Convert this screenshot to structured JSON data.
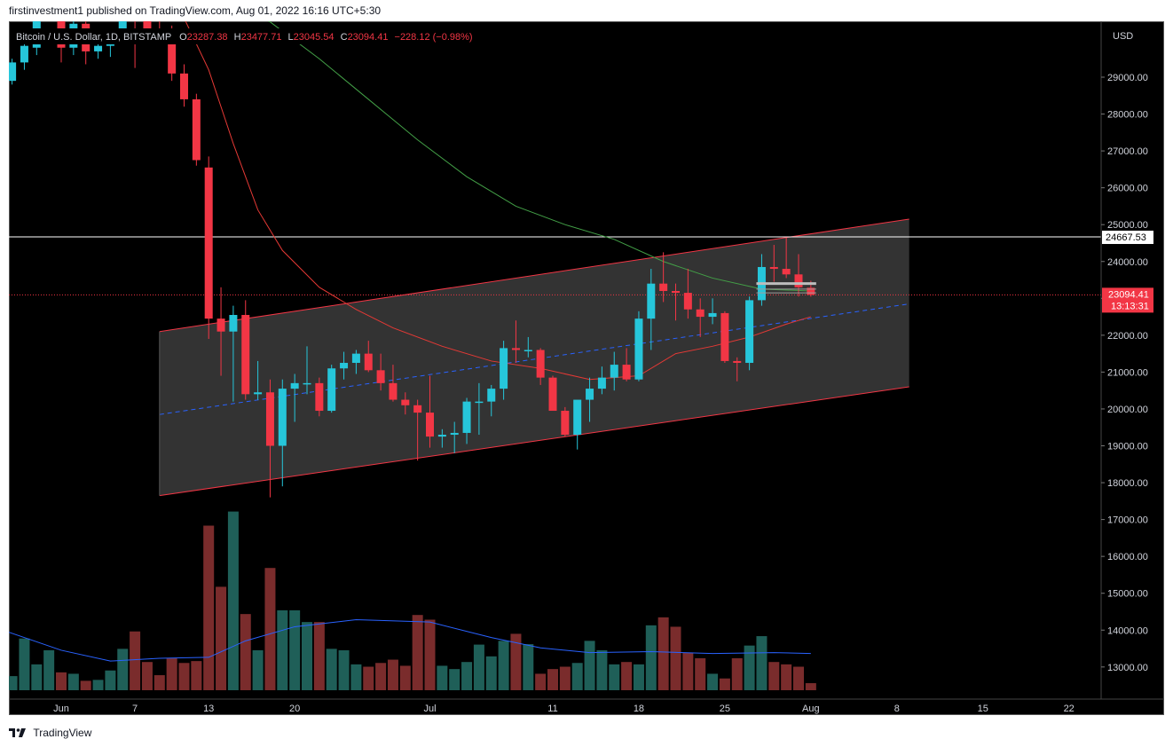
{
  "header": {
    "publish_line": "firstinvestment1 published on TradingView.com, Aug 01, 2022 16:16 UTC+5:30"
  },
  "footer": {
    "brand": "TradingView"
  },
  "symbol": {
    "name": "Bitcoin / U.S. Dollar, 1D, BITSTAMP",
    "o_label": "O",
    "o_value": "23287.38",
    "h_label": "H",
    "h_value": "23477.71",
    "l_label": "L",
    "l_value": "23045.54",
    "c_label": "C",
    "c_value": "23094.41",
    "change": "−228.12 (−0.98%)"
  },
  "colors": {
    "background": "#000000",
    "up": "#26c6da",
    "down": "#f23645",
    "vol_up": "#1f5f58",
    "vol_down": "#7a2c2c",
    "ma_fast": "#e53935",
    "ma_slow": "#43a047",
    "vol_ma": "#2962ff",
    "channel_border": "#f23645",
    "channel_mid": "#2962ff",
    "hline": "#ffffff",
    "price_line": "#f23645"
  },
  "chart_data": {
    "type": "candlestick",
    "currency_label": "USD",
    "y_ticks": [
      29000,
      28000,
      27000,
      26000,
      25000,
      24000,
      23000,
      22000,
      21000,
      20000,
      19000,
      18000,
      17000,
      16000,
      15000,
      14000,
      13000
    ],
    "y_tick_labels": [
      "29000.00",
      "28000.00",
      "27000.00",
      "26000.00",
      "25000.00",
      "24000.00",
      "23000.00",
      "22000.00",
      "21000.00",
      "20000.00",
      "19000.00",
      "18000.00",
      "17000.00",
      "16000.00",
      "15000.00",
      "14000.00",
      "13000.00"
    ],
    "x_labels": [
      {
        "date": "2022-06-01",
        "label": "Jun"
      },
      {
        "date": "2022-06-07",
        "label": "7"
      },
      {
        "date": "2022-06-13",
        "label": "13"
      },
      {
        "date": "2022-06-20",
        "label": "20"
      },
      {
        "date": "2022-07-01",
        "label": "Jul"
      },
      {
        "date": "2022-07-11",
        "label": "11"
      },
      {
        "date": "2022-07-18",
        "label": "18"
      },
      {
        "date": "2022-07-25",
        "label": "25"
      },
      {
        "date": "2022-08-01",
        "label": "Aug"
      },
      {
        "date": "2022-08-08",
        "label": "8"
      },
      {
        "date": "2022-08-15",
        "label": "15"
      },
      {
        "date": "2022-08-22",
        "label": "22"
      }
    ],
    "horizontal_line": {
      "value": 24667.53,
      "label": "24667.53"
    },
    "last_price": {
      "value": 23094.41,
      "label": "23094.41",
      "countdown": "13:13:31"
    },
    "candles": [
      {
        "date": "2022-05-27",
        "o": 28600,
        "h": 29200,
        "l": 28500,
        "c": 29000
      },
      {
        "date": "2022-05-28",
        "o": 28900,
        "h": 29500,
        "l": 28800,
        "c": 29400
      },
      {
        "date": "2022-05-29",
        "o": 29400,
        "h": 30000,
        "l": 29200,
        "c": 29850
      },
      {
        "date": "2022-05-30",
        "o": 29800,
        "h": 32000,
        "l": 29600,
        "c": 31700
      },
      {
        "date": "2022-05-31",
        "o": 31700,
        "h": 32300,
        "l": 31200,
        "c": 31800
      },
      {
        "date": "2022-06-01",
        "o": 31800,
        "h": 31900,
        "l": 29400,
        "c": 29800
      },
      {
        "date": "2022-06-02",
        "o": 29800,
        "h": 30600,
        "l": 29600,
        "c": 30450
      },
      {
        "date": "2022-06-03",
        "o": 30450,
        "h": 30650,
        "l": 29350,
        "c": 29700
      },
      {
        "date": "2022-06-04",
        "o": 29700,
        "h": 29950,
        "l": 29500,
        "c": 29850
      },
      {
        "date": "2022-06-05",
        "o": 29850,
        "h": 30150,
        "l": 29550,
        "c": 29920
      },
      {
        "date": "2022-06-06",
        "o": 29920,
        "h": 31700,
        "l": 29900,
        "c": 31350
      },
      {
        "date": "2022-06-07",
        "o": 31350,
        "h": 31550,
        "l": 29250,
        "c": 31150
      },
      {
        "date": "2022-06-08",
        "o": 31150,
        "h": 31300,
        "l": 29900,
        "c": 30200
      },
      {
        "date": "2022-06-09",
        "o": 30200,
        "h": 30650,
        "l": 29950,
        "c": 30100
      },
      {
        "date": "2022-06-10",
        "o": 30100,
        "h": 30400,
        "l": 28900,
        "c": 29100
      },
      {
        "date": "2022-06-11",
        "o": 29100,
        "h": 29350,
        "l": 28200,
        "c": 28400
      },
      {
        "date": "2022-06-12",
        "o": 28400,
        "h": 28550,
        "l": 26600,
        "c": 26750
      },
      {
        "date": "2022-06-13",
        "o": 26550,
        "h": 26850,
        "l": 21900,
        "c": 22450
      },
      {
        "date": "2022-06-14",
        "o": 22450,
        "h": 23300,
        "l": 20900,
        "c": 22100
      },
      {
        "date": "2022-06-15",
        "o": 22100,
        "h": 22800,
        "l": 20200,
        "c": 22550
      },
      {
        "date": "2022-06-16",
        "o": 22550,
        "h": 22950,
        "l": 20250,
        "c": 20400
      },
      {
        "date": "2022-06-17",
        "o": 20400,
        "h": 21300,
        "l": 20250,
        "c": 20450
      },
      {
        "date": "2022-06-18",
        "o": 20450,
        "h": 20800,
        "l": 17600,
        "c": 19000
      },
      {
        "date": "2022-06-19",
        "o": 19000,
        "h": 20800,
        "l": 17900,
        "c": 20550
      },
      {
        "date": "2022-06-20",
        "o": 20550,
        "h": 20950,
        "l": 19650,
        "c": 20700
      },
      {
        "date": "2022-06-21",
        "o": 20700,
        "h": 21700,
        "l": 20400,
        "c": 20700
      },
      {
        "date": "2022-06-22",
        "o": 20700,
        "h": 20850,
        "l": 19800,
        "c": 19950
      },
      {
        "date": "2022-06-23",
        "o": 19950,
        "h": 21200,
        "l": 19900,
        "c": 21100
      },
      {
        "date": "2022-06-24",
        "o": 21100,
        "h": 21550,
        "l": 20800,
        "c": 21250
      },
      {
        "date": "2022-06-25",
        "o": 21250,
        "h": 21600,
        "l": 20950,
        "c": 21500
      },
      {
        "date": "2022-06-26",
        "o": 21500,
        "h": 21850,
        "l": 21000,
        "c": 21050
      },
      {
        "date": "2022-06-27",
        "o": 21050,
        "h": 21500,
        "l": 20500,
        "c": 20700
      },
      {
        "date": "2022-06-28",
        "o": 20700,
        "h": 21200,
        "l": 20200,
        "c": 20250
      },
      {
        "date": "2022-06-29",
        "o": 20250,
        "h": 20450,
        "l": 19850,
        "c": 20100
      },
      {
        "date": "2022-06-30",
        "o": 20100,
        "h": 20250,
        "l": 18600,
        "c": 19900
      },
      {
        "date": "2022-07-01",
        "o": 19900,
        "h": 20900,
        "l": 18950,
        "c": 19250
      },
      {
        "date": "2022-07-02",
        "o": 19250,
        "h": 19450,
        "l": 18950,
        "c": 19300
      },
      {
        "date": "2022-07-03",
        "o": 19300,
        "h": 19650,
        "l": 18800,
        "c": 19350
      },
      {
        "date": "2022-07-04",
        "o": 19350,
        "h": 20300,
        "l": 19050,
        "c": 20200
      },
      {
        "date": "2022-07-05",
        "o": 20200,
        "h": 20700,
        "l": 19300,
        "c": 20200
      },
      {
        "date": "2022-07-06",
        "o": 20200,
        "h": 20650,
        "l": 19800,
        "c": 20550
      },
      {
        "date": "2022-07-07",
        "o": 20550,
        "h": 21850,
        "l": 20250,
        "c": 21650
      },
      {
        "date": "2022-07-08",
        "o": 21650,
        "h": 22400,
        "l": 21250,
        "c": 21600
      },
      {
        "date": "2022-07-09",
        "o": 21600,
        "h": 21950,
        "l": 21400,
        "c": 21600
      },
      {
        "date": "2022-07-10",
        "o": 21600,
        "h": 21650,
        "l": 20650,
        "c": 20850
      },
      {
        "date": "2022-07-11",
        "o": 20850,
        "h": 20900,
        "l": 19950,
        "c": 19950
      },
      {
        "date": "2022-07-12",
        "o": 19950,
        "h": 20050,
        "l": 19250,
        "c": 19300
      },
      {
        "date": "2022-07-13",
        "o": 19300,
        "h": 20200,
        "l": 18900,
        "c": 20250
      },
      {
        "date": "2022-07-14",
        "o": 20250,
        "h": 20850,
        "l": 19650,
        "c": 20550
      },
      {
        "date": "2022-07-15",
        "o": 20550,
        "h": 21150,
        "l": 20400,
        "c": 20850
      },
      {
        "date": "2022-07-16",
        "o": 20850,
        "h": 21550,
        "l": 20500,
        "c": 21200
      },
      {
        "date": "2022-07-17",
        "o": 21200,
        "h": 21650,
        "l": 20750,
        "c": 20800
      },
      {
        "date": "2022-07-18",
        "o": 20800,
        "h": 22650,
        "l": 20750,
        "c": 22450
      },
      {
        "date": "2022-07-19",
        "o": 22450,
        "h": 23800,
        "l": 21600,
        "c": 23400
      },
      {
        "date": "2022-07-20",
        "o": 23400,
        "h": 24250,
        "l": 22900,
        "c": 23200
      },
      {
        "date": "2022-07-21",
        "o": 23200,
        "h": 23400,
        "l": 22400,
        "c": 23150
      },
      {
        "date": "2022-07-22",
        "o": 23150,
        "h": 23800,
        "l": 22450,
        "c": 22700
      },
      {
        "date": "2022-07-23",
        "o": 22700,
        "h": 23000,
        "l": 21950,
        "c": 22500
      },
      {
        "date": "2022-07-24",
        "o": 22500,
        "h": 23000,
        "l": 22300,
        "c": 22600
      },
      {
        "date": "2022-07-25",
        "o": 22600,
        "h": 22650,
        "l": 21250,
        "c": 21300
      },
      {
        "date": "2022-07-26",
        "o": 21300,
        "h": 21400,
        "l": 20750,
        "c": 21250
      },
      {
        "date": "2022-07-27",
        "o": 21250,
        "h": 23050,
        "l": 21050,
        "c": 22950
      },
      {
        "date": "2022-07-28",
        "o": 22950,
        "h": 24200,
        "l": 22800,
        "c": 23850
      },
      {
        "date": "2022-07-29",
        "o": 23850,
        "h": 24450,
        "l": 23450,
        "c": 23800
      },
      {
        "date": "2022-07-30",
        "o": 23800,
        "h": 24650,
        "l": 23550,
        "c": 23650
      },
      {
        "date": "2022-07-31",
        "o": 23650,
        "h": 24200,
        "l": 23050,
        "c": 23300
      },
      {
        "date": "2022-08-01",
        "o": 23287.38,
        "h": 23477.71,
        "l": 23045.54,
        "c": 23094.41
      }
    ],
    "volume": [
      0.25,
      0.3,
      1.1,
      0.55,
      0.85,
      0.38,
      0.35,
      0.2,
      0.22,
      0.42,
      0.88,
      1.25,
      0.6,
      0.32,
      0.68,
      0.58,
      0.62,
      3.5,
      2.2,
      3.8,
      1.62,
      0.85,
      2.6,
      1.7,
      1.7,
      1.45,
      1.45,
      0.88,
      0.85,
      0.55,
      0.5,
      0.58,
      0.65,
      0.52,
      1.6,
      1.5,
      0.52,
      0.45,
      0.6,
      0.97,
      0.72,
      1.05,
      1.2,
      0.98,
      0.35,
      0.45,
      0.5,
      0.58,
      1.05,
      0.85,
      0.55,
      0.6,
      0.55,
      1.38,
      1.55,
      1.35,
      0.8,
      0.68,
      0.35,
      0.25,
      0.68,
      0.95,
      1.15,
      0.6,
      0.55,
      0.5,
      0.15
    ],
    "ma_fast": [
      {
        "date": "2022-06-09",
        "v": 31700
      },
      {
        "date": "2022-06-11",
        "v": 30600
      },
      {
        "date": "2022-06-13",
        "v": 29200
      },
      {
        "date": "2022-06-15",
        "v": 27200
      },
      {
        "date": "2022-06-17",
        "v": 25400
      },
      {
        "date": "2022-06-19",
        "v": 24300
      },
      {
        "date": "2022-06-22",
        "v": 23300
      },
      {
        "date": "2022-06-25",
        "v": 22700
      },
      {
        "date": "2022-06-28",
        "v": 22200
      },
      {
        "date": "2022-07-02",
        "v": 21700
      },
      {
        "date": "2022-07-06",
        "v": 21300
      },
      {
        "date": "2022-07-10",
        "v": 21100
      },
      {
        "date": "2022-07-14",
        "v": 20800
      },
      {
        "date": "2022-07-18",
        "v": 20900
      },
      {
        "date": "2022-07-21",
        "v": 21500
      },
      {
        "date": "2022-07-24",
        "v": 21700
      },
      {
        "date": "2022-07-27",
        "v": 21950
      },
      {
        "date": "2022-07-30",
        "v": 22300
      },
      {
        "date": "2022-08-01",
        "v": 22500
      }
    ],
    "ma_slow": [
      {
        "date": "2022-06-10",
        "v": 31900
      },
      {
        "date": "2022-06-14",
        "v": 31200
      },
      {
        "date": "2022-06-18",
        "v": 30500
      },
      {
        "date": "2022-06-22",
        "v": 29500
      },
      {
        "date": "2022-06-26",
        "v": 28400
      },
      {
        "date": "2022-06-30",
        "v": 27300
      },
      {
        "date": "2022-07-04",
        "v": 26300
      },
      {
        "date": "2022-07-08",
        "v": 25500
      },
      {
        "date": "2022-07-12",
        "v": 25000
      },
      {
        "date": "2022-07-16",
        "v": 24600
      },
      {
        "date": "2022-07-20",
        "v": 24000
      },
      {
        "date": "2022-07-24",
        "v": 23550
      },
      {
        "date": "2022-07-28",
        "v": 23250
      },
      {
        "date": "2022-08-01",
        "v": 23200
      }
    ],
    "vol_ma": [
      {
        "date": "2022-05-27",
        "v": 1.3
      },
      {
        "date": "2022-06-01",
        "v": 0.85
      },
      {
        "date": "2022-06-05",
        "v": 0.62
      },
      {
        "date": "2022-06-09",
        "v": 0.68
      },
      {
        "date": "2022-06-13",
        "v": 0.7
      },
      {
        "date": "2022-06-16",
        "v": 1.05
      },
      {
        "date": "2022-06-20",
        "v": 1.35
      },
      {
        "date": "2022-06-25",
        "v": 1.5
      },
      {
        "date": "2022-07-01",
        "v": 1.45
      },
      {
        "date": "2022-07-06",
        "v": 1.12
      },
      {
        "date": "2022-07-10",
        "v": 0.9
      },
      {
        "date": "2022-07-14",
        "v": 0.8
      },
      {
        "date": "2022-07-19",
        "v": 0.82
      },
      {
        "date": "2022-07-24",
        "v": 0.78
      },
      {
        "date": "2022-07-29",
        "v": 0.8
      },
      {
        "date": "2022-08-01",
        "v": 0.78
      }
    ],
    "channel": {
      "start": "2022-06-09",
      "end": "2022-08-09",
      "upper": [
        22100,
        25150
      ],
      "mid": [
        19850,
        22850
      ],
      "lower": [
        17650,
        20600
      ]
    },
    "range_box": {
      "start": "2022-07-28",
      "end": "2022-08-01",
      "values": [
        23400,
        23250,
        23150
      ]
    }
  }
}
